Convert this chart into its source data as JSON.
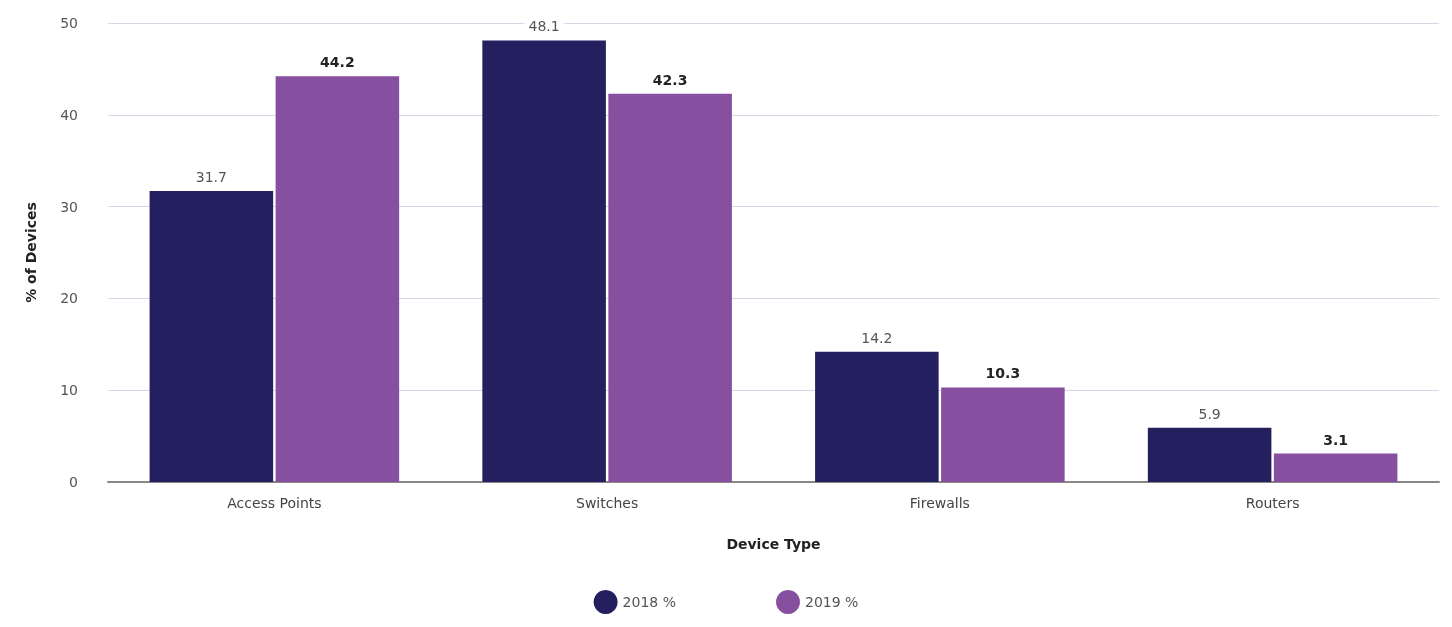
{
  "chart_data": {
    "type": "bar",
    "xlabel": "Device Type",
    "ylabel": "% of Devices",
    "categories": [
      "Access Points",
      "Switches",
      "Firewalls",
      "Routers"
    ],
    "series": [
      {
        "name": "2018 %",
        "color": "#241f5f",
        "values": [
          31.7,
          48.1,
          14.2,
          5.9
        ]
      },
      {
        "name": "2019 %",
        "color": "#864f9f",
        "values": [
          44.2,
          42.3,
          10.3,
          3.1
        ]
      }
    ],
    "ylim": [
      0,
      50
    ],
    "yticks": [
      0,
      10,
      20,
      30,
      40,
      50
    ],
    "grid": "y",
    "legend": "bottom",
    "data_labels": true
  }
}
